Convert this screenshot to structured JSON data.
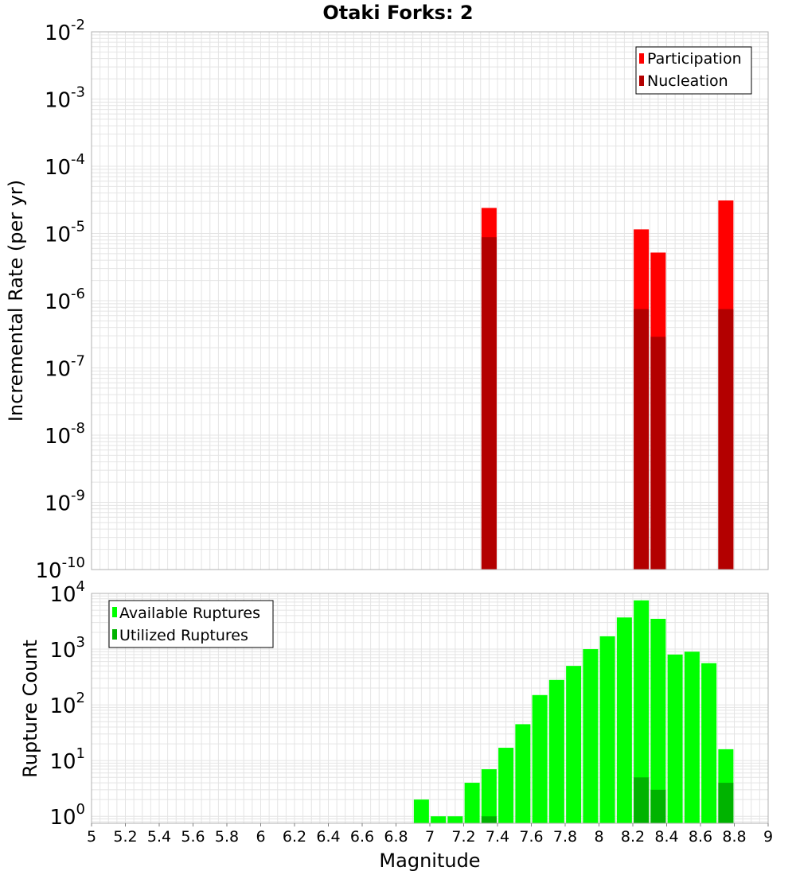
{
  "title": "Otaki Forks: 2",
  "colors": {
    "participation": "#ff0000",
    "nucleation": "#b30000",
    "available": "#00ff00",
    "utilized": "#00b300",
    "grid": "#e4e4e4",
    "frame": "#b0b0b0"
  },
  "chart_data": [
    {
      "type": "bar",
      "name": "incremental-rate",
      "ylabel": "Incremental Rate (per yr)",
      "yscale": "log",
      "ylim": [
        1e-10,
        0.01
      ],
      "xlim": [
        5,
        9
      ],
      "yticks": [
        {
          "base": "10",
          "exp": "-10"
        },
        {
          "base": "10",
          "exp": "-9"
        },
        {
          "base": "10",
          "exp": "-8"
        },
        {
          "base": "10",
          "exp": "-7"
        },
        {
          "base": "10",
          "exp": "-6"
        },
        {
          "base": "10",
          "exp": "-5"
        },
        {
          "base": "10",
          "exp": "-4"
        },
        {
          "base": "10",
          "exp": "-3"
        },
        {
          "base": "10",
          "exp": "-2"
        }
      ],
      "legend": {
        "position": "top-right",
        "entries": [
          "Participation",
          "Nucleation"
        ]
      },
      "series": [
        {
          "name": "Participation",
          "x": [
            7.35,
            8.25,
            8.35,
            8.75
          ],
          "values": [
            2.4e-05,
            1.15e-05,
            5.2e-06,
            3.1e-05
          ]
        },
        {
          "name": "Nucleation",
          "x": [
            7.35,
            8.25,
            8.35,
            8.75
          ],
          "values": [
            8.8e-06,
            7.5e-07,
            2.9e-07,
            7.5e-07
          ]
        }
      ]
    },
    {
      "type": "bar",
      "name": "rupture-count",
      "ylabel": "Rupture Count",
      "xlabel": "Magnitude",
      "yscale": "log",
      "ylim": [
        0.75,
        10000
      ],
      "xlim": [
        5,
        9
      ],
      "xticks": [
        "5",
        "5.2",
        "5.4",
        "5.6",
        "5.8",
        "6",
        "6.2",
        "6.4",
        "6.6",
        "6.8",
        "7",
        "7.2",
        "7.4",
        "7.6",
        "7.8",
        "8",
        "8.2",
        "8.4",
        "8.6",
        "8.8",
        "9"
      ],
      "yticks": [
        {
          "base": "10",
          "exp": "0"
        },
        {
          "base": "10",
          "exp": "1"
        },
        {
          "base": "10",
          "exp": "2"
        },
        {
          "base": "10",
          "exp": "3"
        },
        {
          "base": "10",
          "exp": "4"
        }
      ],
      "legend": {
        "position": "top-left",
        "entries": [
          "Available Ruptures",
          "Utilized Ruptures"
        ]
      },
      "series": [
        {
          "name": "Available Ruptures",
          "x": [
            6.95,
            7.05,
            7.15,
            7.25,
            7.35,
            7.45,
            7.55,
            7.65,
            7.75,
            7.85,
            7.95,
            8.05,
            8.15,
            8.25,
            8.35,
            8.45,
            8.55,
            8.65,
            8.75
          ],
          "values": [
            2,
            1,
            1,
            4,
            7,
            17,
            45,
            150,
            280,
            500,
            1000,
            1700,
            3700,
            7500,
            3500,
            800,
            900,
            560,
            16
          ]
        },
        {
          "name": "Utilized Ruptures",
          "x": [
            7.35,
            8.25,
            8.35,
            8.75
          ],
          "values": [
            1,
            5,
            3,
            4
          ]
        }
      ]
    }
  ]
}
